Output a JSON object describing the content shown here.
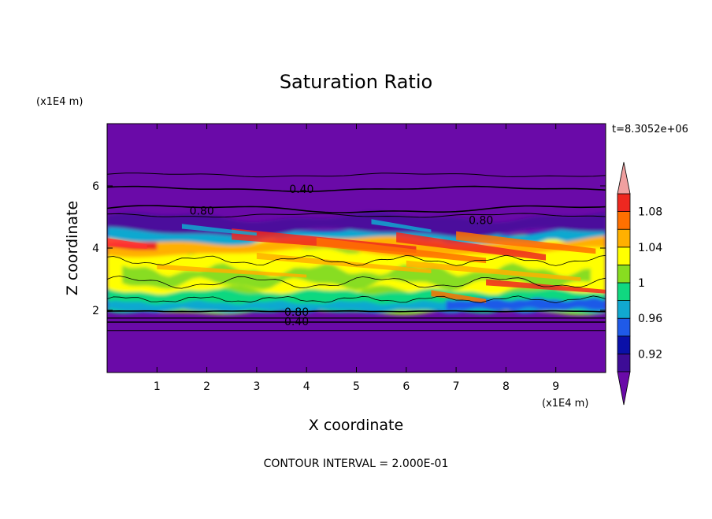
{
  "chart_data": {
    "type": "heatmap",
    "title": "Saturation Ratio",
    "xlabel": "X coordinate",
    "ylabel": "Z coordinate",
    "x_unit": "(x1E4 m)",
    "y_unit": "(x1E4 m)",
    "time_label": "t=8.3052e+06",
    "footer": "CONTOUR INTERVAL = 2.000E-01",
    "xlim": [
      0,
      10
    ],
    "ylim": [
      0,
      8
    ],
    "x_ticks": [
      "1",
      "2",
      "3",
      "4",
      "5",
      "6",
      "7",
      "8",
      "9"
    ],
    "y_ticks": [
      "2",
      "4",
      "6"
    ],
    "colorbar": {
      "levels": [
        0.9,
        0.92,
        0.94,
        0.96,
        0.98,
        1.0,
        1.02,
        1.04,
        1.06,
        1.08,
        1.1
      ],
      "labels": [
        "0.92",
        "0.96",
        "1",
        "1.04",
        "1.08"
      ],
      "colors": [
        "#3d0c96",
        "#0a10a8",
        "#1f5ae8",
        "#11a8d0",
        "#10d880",
        "#88dd20",
        "#ffff00",
        "#ffb000",
        "#ff7000",
        "#ee2820"
      ],
      "under_color": "#6a0aa8",
      "over_color": "#f0a0a0"
    },
    "contour_labels": [
      {
        "text": "0.40",
        "x": 3.9,
        "z": 5.9
      },
      {
        "text": "0.80",
        "x": 1.9,
        "z": 5.2
      },
      {
        "text": "0.80",
        "x": 7.5,
        "z": 4.9
      },
      {
        "text": "0.80",
        "x": 3.8,
        "z": 1.95
      },
      {
        "text": "0.40",
        "x": 3.8,
        "z": 1.65
      }
    ],
    "background_color": "#6a0aa8"
  }
}
